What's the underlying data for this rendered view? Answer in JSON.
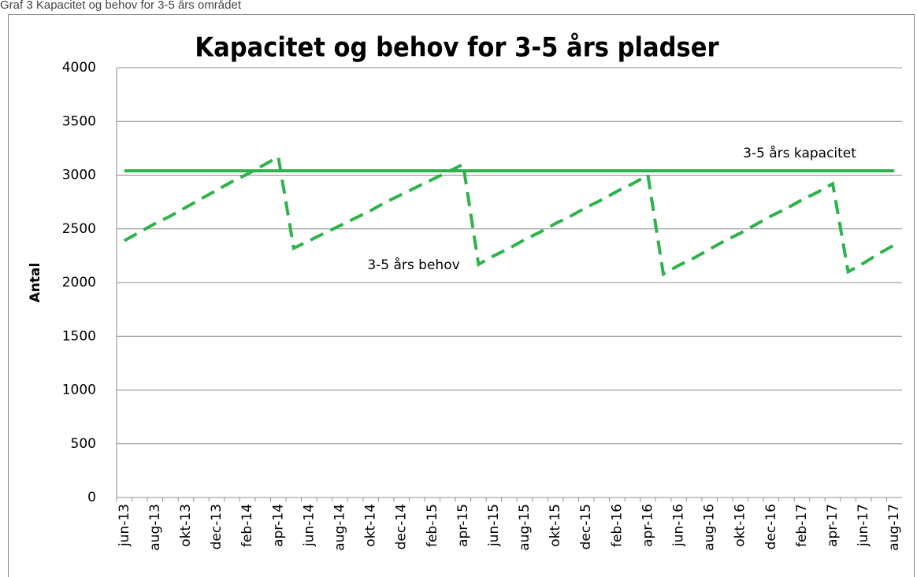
{
  "caption": "Graf 3 Kapacitet og behov for 3-5 års området",
  "chart_data": {
    "type": "line",
    "title": "Kapacitet og behov for 3-5 års pladser",
    "y_label": "Antal",
    "categories": [
      "jun-13",
      null,
      "aug-13",
      null,
      "okt-13",
      null,
      "dec-13",
      null,
      "feb-14",
      null,
      "apr-14",
      null,
      "jun-14",
      null,
      "aug-14",
      null,
      "okt-14",
      null,
      "dec-14",
      null,
      "feb-15",
      null,
      "apr-15",
      null,
      "jun-15",
      null,
      "aug-15",
      null,
      "okt-15",
      null,
      "dec-15",
      null,
      "feb-16",
      null,
      "apr-16",
      null,
      "jun-16",
      null,
      "aug-16",
      null,
      "okt-16",
      null,
      "dec-16",
      null,
      "feb-17",
      null,
      "apr-17",
      null,
      "jun-17",
      null,
      "aug-17"
    ],
    "series": [
      {
        "name": "3-5 års kapacitet",
        "color": "#2db34a",
        "dashed": false,
        "values": [
          3040,
          3040,
          3040,
          3040,
          3040,
          3040,
          3040,
          3040,
          3040,
          3040,
          3040,
          3040,
          3040,
          3040,
          3040,
          3040,
          3040,
          3040,
          3040,
          3040,
          3040,
          3040,
          3040,
          3040,
          3040,
          3040,
          3040,
          3040,
          3040,
          3040,
          3040,
          3040,
          3040,
          3040,
          3040,
          3040,
          3040,
          3040,
          3040,
          3040,
          3040,
          3040,
          3040,
          3040,
          3040,
          3040,
          3040,
          3040,
          3040,
          3040,
          3040
        ]
      },
      {
        "name": "3-5 års behov",
        "color": "#2db34a",
        "dashed": true,
        "values": [
          2390,
          2470,
          2550,
          2620,
          2700,
          2780,
          2860,
          2940,
          3010,
          3090,
          3170,
          2320,
          2390,
          2460,
          2530,
          2600,
          2670,
          2750,
          2820,
          2890,
          2960,
          3030,
          3100,
          2170,
          2250,
          2320,
          2400,
          2470,
          2550,
          2620,
          2700,
          2770,
          2850,
          2920,
          3000,
          2080,
          2160,
          2230,
          2310,
          2390,
          2460,
          2540,
          2620,
          2690,
          2770,
          2840,
          2920,
          2100,
          2180,
          2270,
          2350
        ]
      }
    ],
    "ylim": [
      0,
      4000
    ],
    "yticks": [
      0,
      500,
      1000,
      1500,
      2000,
      2500,
      3000,
      3500,
      4000
    ],
    "grid": true
  }
}
